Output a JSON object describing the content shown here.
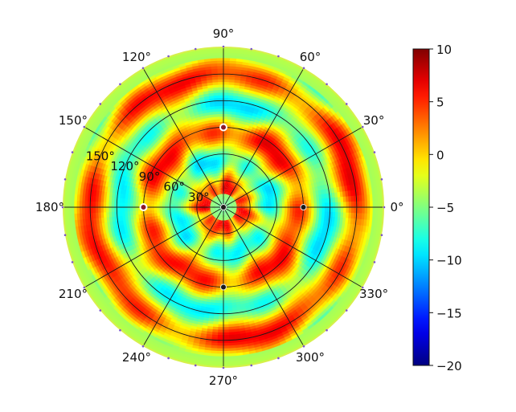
{
  "chart_data": {
    "type": "heatmap",
    "projection": "polar",
    "title": "",
    "angular_ticks": [
      "0°",
      "30°",
      "60°",
      "90°",
      "120°",
      "150°",
      "180°",
      "210°",
      "240°",
      "270°",
      "300°",
      "330°"
    ],
    "angular_tick_values": [
      0,
      30,
      60,
      90,
      120,
      150,
      180,
      210,
      240,
      270,
      300,
      330
    ],
    "radial_ticks": [
      "30°",
      "60°",
      "90°",
      "120°",
      "150°"
    ],
    "radial_tick_values": [
      30,
      60,
      90,
      120,
      150
    ],
    "rlim": [
      0,
      180
    ],
    "grid": true,
    "colorbar": {
      "colormap": "jet",
      "vmin": -20,
      "vmax": 10,
      "ticks": [
        "10",
        "5",
        "0",
        "−5",
        "−10",
        "−15",
        "−20"
      ],
      "tick_values": [
        10,
        5,
        0,
        -5,
        -10,
        -15,
        -20
      ]
    },
    "field_description_values": {
      "r_center_ring_low": -6,
      "r_60_ring": 2,
      "r_90_ring": -3,
      "r_120_ring": 6,
      "r_150_ring": -2,
      "r_edge_ring": -5
    },
    "markers": [
      {
        "theta": 90,
        "r": 90,
        "style": "white-ring"
      },
      {
        "theta": 270,
        "r": 90,
        "style": "dark-dot"
      },
      {
        "theta": 0,
        "r": 90,
        "style": "dark-dot"
      },
      {
        "theta": 180,
        "r": 90,
        "style": "white-ring"
      },
      {
        "theta": 0,
        "r": 0,
        "style": "dark-dot"
      }
    ],
    "colors": {
      "grid": "#1a1a1a",
      "edge": "#d6f04a"
    }
  }
}
